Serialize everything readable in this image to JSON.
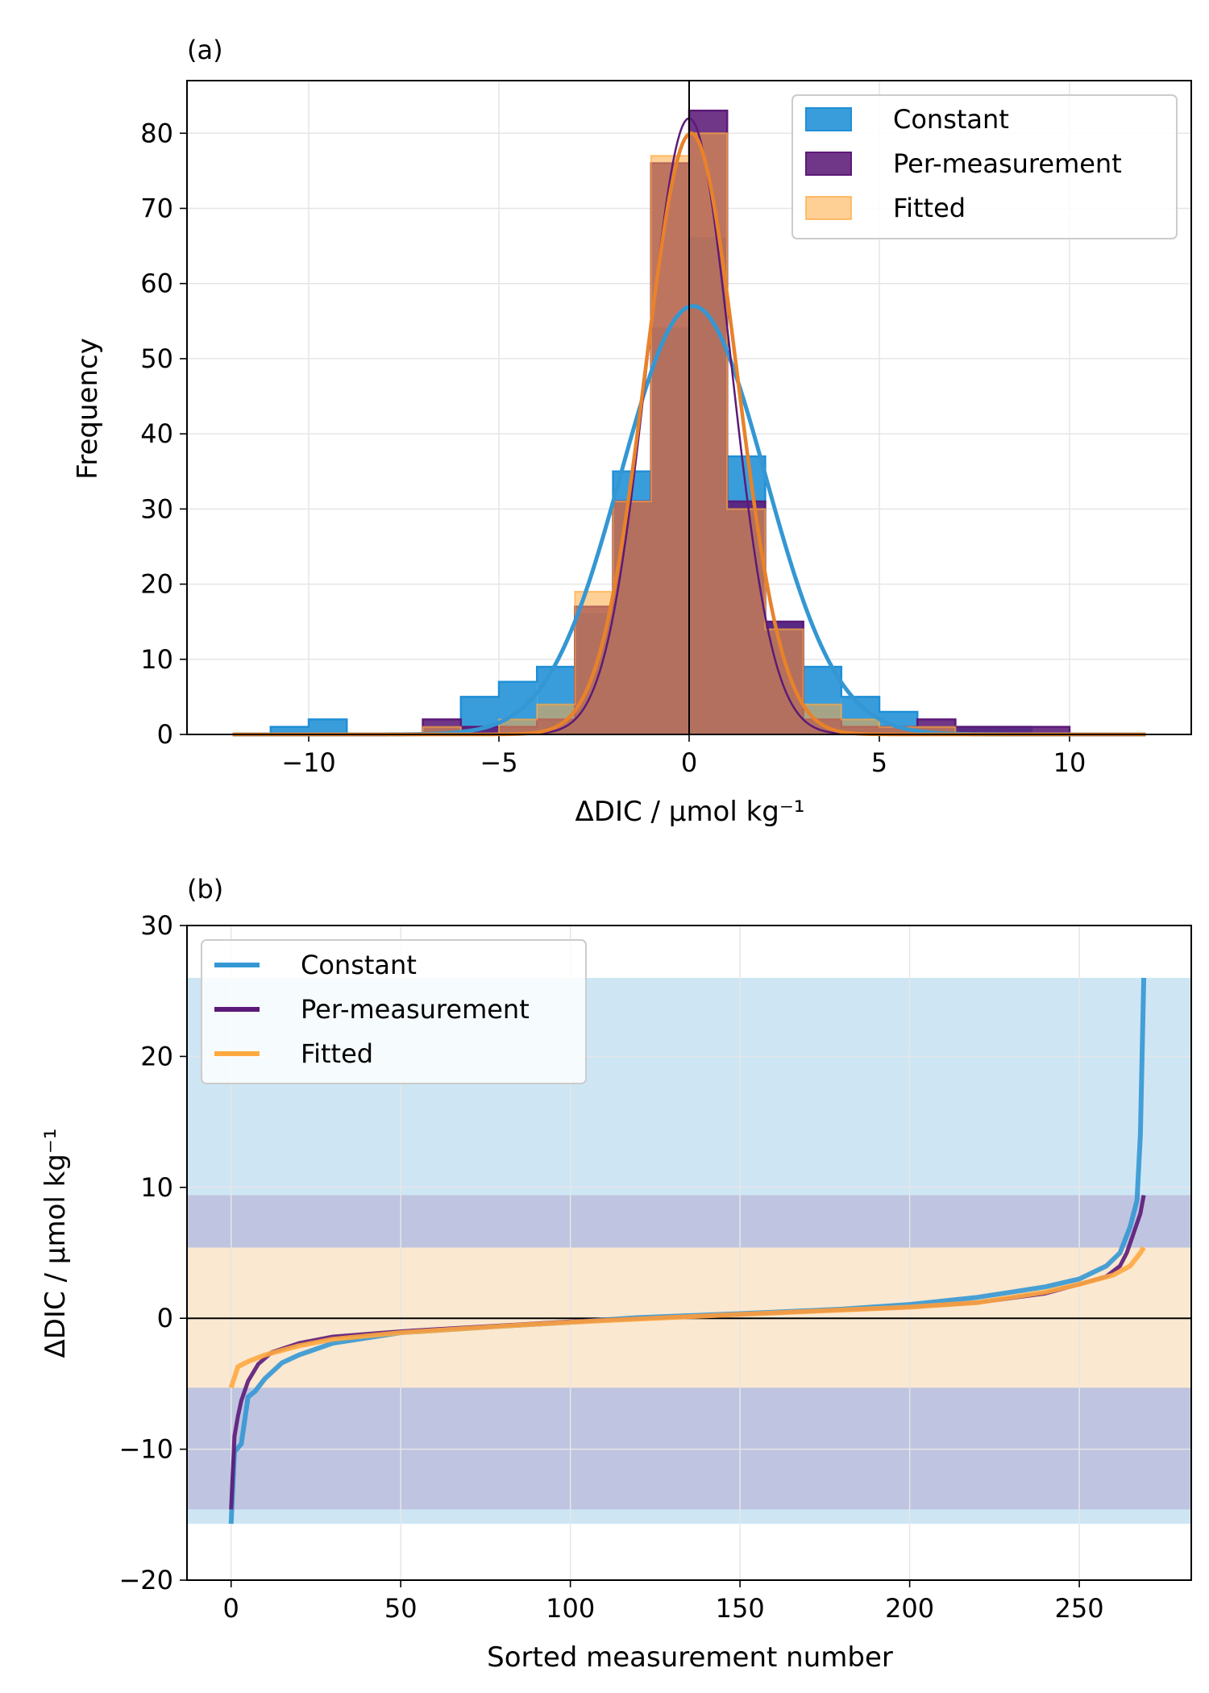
{
  "colors": {
    "constant": "#1f8fd6",
    "constant_line": "#3497d3",
    "per_measurement": "#5c1a78",
    "fitted": "#ffa940",
    "fitted_line": "#e8822a",
    "grid": "#e6e6e6"
  },
  "chart_data": [
    {
      "type": "bar",
      "panel_label": "(a)",
      "xlabel": "ΔDIC / µmol kg⁻¹",
      "ylabel": "Frequency",
      "xlim": [
        -13.2,
        13.2
      ],
      "ylim": [
        0,
        87
      ],
      "grid": true,
      "legend_position": "top-right",
      "xticks": [
        -10,
        -5,
        0,
        5,
        10
      ],
      "xtick_labels": [
        "−10",
        "−5",
        "0",
        "5",
        "10"
      ],
      "yticks": [
        0,
        10,
        20,
        30,
        40,
        50,
        60,
        70,
        80
      ],
      "ytick_labels": [
        "0",
        "10",
        "20",
        "30",
        "40",
        "50",
        "60",
        "70",
        "80"
      ],
      "bin_edges": [
        -12,
        -11,
        -10,
        -9,
        -8,
        -7,
        -6,
        -5,
        -4,
        -3,
        -2,
        -1,
        0,
        1,
        2,
        3,
        4,
        5,
        6,
        7,
        8,
        9,
        10,
        11,
        12
      ],
      "series": [
        {
          "name": "Constant",
          "key": "constant",
          "counts": [
            0,
            1,
            2,
            0,
            0,
            1,
            5,
            7,
            9,
            16,
            35,
            54,
            66,
            37,
            15,
            9,
            5,
            3,
            1,
            1,
            1,
            0,
            0,
            0
          ],
          "gaussian": {
            "amplitude": 57,
            "mean": 0.1,
            "sigma": 1.9
          }
        },
        {
          "name": "Per-measurement",
          "key": "per_measurement",
          "counts": [
            0,
            0,
            0,
            0,
            0,
            2,
            1,
            1,
            2,
            17,
            31,
            76,
            83,
            31,
            15,
            2,
            1,
            1,
            2,
            1,
            1,
            1,
            0,
            0
          ],
          "gaussian": {
            "amplitude": 82,
            "mean": 0.0,
            "sigma": 1.1
          }
        },
        {
          "name": "Fitted",
          "key": "fitted",
          "counts": [
            0,
            0,
            0,
            0,
            0,
            1,
            0,
            2,
            4,
            19,
            31,
            77,
            80,
            30,
            14,
            4,
            2,
            1,
            1,
            0,
            0,
            0,
            0,
            0
          ],
          "gaussian": {
            "amplitude": 80,
            "mean": 0.05,
            "sigma": 1.2
          }
        }
      ]
    },
    {
      "type": "line",
      "panel_label": "(b)",
      "xlabel": "Sorted measurement number",
      "ylabel": "ΔDIC / µmol kg⁻¹",
      "xlim": [
        -13,
        283
      ],
      "ylim": [
        -20,
        30
      ],
      "grid": true,
      "legend_position": "top-left",
      "xticks": [
        0,
        50,
        100,
        150,
        200,
        250
      ],
      "xtick_labels": [
        "0",
        "50",
        "100",
        "150",
        "200",
        "250"
      ],
      "yticks": [
        -20,
        -10,
        0,
        10,
        20,
        30
      ],
      "ytick_labels": [
        "−20",
        "−10",
        "0",
        "10",
        "20",
        "30"
      ],
      "bands": [
        {
          "key": "constant",
          "ymin": -15.7,
          "ymax": 26.0
        },
        {
          "key": "per_measurement",
          "ymin": -14.6,
          "ymax": 9.4
        },
        {
          "key": "fitted",
          "ymin": -5.3,
          "ymax": 5.4
        }
      ],
      "series": [
        {
          "name": "Constant",
          "key": "constant",
          "x": [
            0,
            1,
            3,
            5,
            7,
            10,
            15,
            20,
            30,
            50,
            80,
            100,
            120,
            150,
            180,
            200,
            220,
            240,
            250,
            258,
            262,
            265,
            267,
            268,
            269
          ],
          "y": [
            -15.7,
            -10.2,
            -9.6,
            -6.0,
            -5.6,
            -4.6,
            -3.4,
            -2.8,
            -1.9,
            -1.1,
            -0.6,
            -0.3,
            0.05,
            0.35,
            0.7,
            1.05,
            1.6,
            2.4,
            3.0,
            4.0,
            5.0,
            7.0,
            9.0,
            14.0,
            26.0
          ]
        },
        {
          "name": "Per-measurement",
          "key": "per_measurement",
          "x": [
            0,
            1,
            2,
            3,
            5,
            8,
            12,
            20,
            30,
            50,
            80,
            100,
            150,
            200,
            220,
            240,
            250,
            258,
            262,
            264,
            266,
            268,
            269
          ],
          "y": [
            -14.6,
            -9.0,
            -7.5,
            -6.3,
            -4.8,
            -3.5,
            -2.6,
            -1.9,
            -1.4,
            -1.0,
            -0.55,
            -0.25,
            0.3,
            0.85,
            1.2,
            1.9,
            2.6,
            3.2,
            4.0,
            5.0,
            6.5,
            8.0,
            9.4
          ]
        },
        {
          "name": "Fitted",
          "key": "fitted",
          "x": [
            0,
            2,
            5,
            10,
            20,
            30,
            50,
            80,
            100,
            150,
            200,
            220,
            240,
            250,
            260,
            265,
            268,
            269
          ],
          "y": [
            -5.3,
            -3.7,
            -3.3,
            -2.8,
            -2.1,
            -1.6,
            -1.1,
            -0.6,
            -0.3,
            0.3,
            0.85,
            1.2,
            2.0,
            2.6,
            3.3,
            4.0,
            5.0,
            5.4
          ]
        }
      ]
    }
  ]
}
